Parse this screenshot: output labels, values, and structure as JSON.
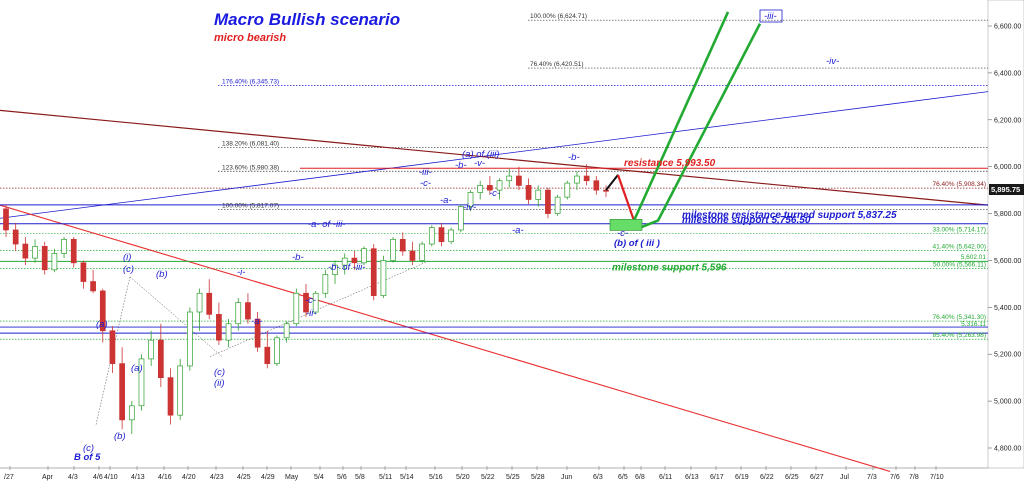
{
  "colors": {
    "blue": "#1c1cd0",
    "red": "#e02020",
    "darkred": "#8b1a1a",
    "green": "#22aa33",
    "candle_up": "#2fa02f",
    "candle_dn": "#cc3333",
    "grid": "#bbbbbb"
  },
  "chart_data": {
    "type": "candlestick",
    "title": "Macro Bullish scenario",
    "subtitle": "micro bearish",
    "ylim": [
      4700,
      6700
    ],
    "price_axis": [
      "4,800.00",
      "5,000.00",
      "5,200.00",
      "5,400.00",
      "5,600.00",
      "5,800.00",
      "6,000.00",
      "6,200.00",
      "6,400.00",
      "6,600.00"
    ],
    "x_ticks": [
      "/27",
      "Apr",
      "4/3",
      "4/6",
      "4/10",
      "4/13",
      "4/16",
      "4/20",
      "4/23",
      "4/25",
      "4/29",
      "May",
      "5/4",
      "5/6",
      "5/8",
      "5/11",
      "5/14",
      "5/16",
      "5/20",
      "5/22",
      "5/25",
      "5/28",
      "Jun",
      "6/3",
      "6/5",
      "6/8",
      "6/11",
      "6/13",
      "6/17",
      "6/19",
      "6/22",
      "6/25",
      "6/27",
      "Jul",
      "7/3",
      "7/6",
      "7/8",
      "7/10"
    ],
    "last_price": "5,895.75",
    "fib_levels": [
      {
        "label": "100.00% (6,624.71)",
        "value": 6624.71,
        "color": "#333333",
        "side": "upper"
      },
      {
        "label": "76.40% (6,420.51)",
        "value": 6420.51,
        "color": "#333333",
        "side": "upper"
      },
      {
        "label": "176.40% (6,345.73)",
        "value": 6345.73,
        "color": "#1c1cd0",
        "side": "left"
      },
      {
        "label": "138.20% (6,081.40)",
        "value": 6081.4,
        "color": "#333333",
        "side": "left"
      },
      {
        "label": "123.60% (5,980.38)",
        "value": 5980.38,
        "color": "#333333",
        "side": "left"
      },
      {
        "label": "100.00% (5,817.07)",
        "value": 5817.07,
        "color": "#333333",
        "side": "left"
      },
      {
        "label": "76.40% (5,908.34)",
        "value": 5908.34,
        "color": "#8b1a1a",
        "side": "right"
      },
      {
        "label": "33.00% (5,714.17)",
        "value": 5714.17,
        "color": "#22aa33",
        "side": "right"
      },
      {
        "label": "41.40% (5,642.00)",
        "value": 5642.0,
        "color": "#22aa33",
        "side": "right"
      },
      {
        "label": "50.00% (5,566.11)",
        "value": 5566.11,
        "color": "#22aa33",
        "side": "right"
      },
      {
        "label": "76.40% (5,341.30)",
        "value": 5341.3,
        "color": "#22aa33",
        "side": "right"
      },
      {
        "label": "85.40% (5,263.98)",
        "value": 5263.98,
        "color": "#22aa33",
        "side": "right"
      }
    ],
    "small_prices": [
      {
        "label": "5,602.01",
        "value": 5602.01
      },
      {
        "label": "5,316.11",
        "value": 5316.11
      }
    ],
    "horizontal_levels": [
      {
        "label": "resistance 5,993.50",
        "value": 5993.5,
        "color": "#e02020"
      },
      {
        "label": "milestone resistance turned support 5,837.25",
        "value": 5837.25,
        "color": "#1c1cd0"
      },
      {
        "label": "milestone support 5,756.50",
        "value": 5756.5,
        "color": "#1c1cd0"
      },
      {
        "label": "milestone support 5,596",
        "value": 5596,
        "color": "#22aa33"
      }
    ],
    "wave_labels": [
      {
        "text": "-iii-",
        "color": "#1c1cd0",
        "boxed": true
      },
      {
        "text": "-iv-",
        "color": "#1c1cd0"
      },
      {
        "text": "(a) of (iii)",
        "color": "#1c1cd0"
      },
      {
        "text": "-v-",
        "color": "#1c1cd0"
      },
      {
        "text": "-b-",
        "color": "#1c1cd0"
      },
      {
        "text": "-iii-",
        "color": "#1c1cd0"
      },
      {
        "text": "-b-",
        "color": "#1c1cd0"
      },
      {
        "text": "-c-",
        "color": "#1c1cd0"
      },
      {
        "text": "-a-",
        "color": "#1c1cd0"
      },
      {
        "text": "-iv-",
        "color": "#1c1cd0"
      },
      {
        "text": "-c-",
        "color": "#1c1cd0"
      },
      {
        "text": "-a-",
        "color": "#1c1cd0"
      },
      {
        "text": "-a- of -iii-",
        "color": "#1c1cd0"
      },
      {
        "text": "-b- of -iii-",
        "color": "#1c1cd0"
      },
      {
        "text": "-b-",
        "color": "#1c1cd0"
      },
      {
        "text": "-i-",
        "color": "#1c1cd0"
      },
      {
        "text": "-c-",
        "color": "#1c1cd0"
      },
      {
        "text": "-ii-",
        "color": "#1c1cd0"
      },
      {
        "text": "-a-",
        "color": "#1c1cd0"
      },
      {
        "text": "(i)",
        "color": "#1c1cd0"
      },
      {
        "text": "(c)",
        "color": "#1c1cd0"
      },
      {
        "text": "(b)",
        "color": "#1c1cd0"
      },
      {
        "text": "(a)",
        "color": "#1c1cd0"
      },
      {
        "text": "(a)",
        "color": "#1c1cd0"
      },
      {
        "text": "(c)",
        "color": "#1c1cd0"
      },
      {
        "text": "(ii)",
        "color": "#1c1cd0"
      },
      {
        "text": "(b)",
        "color": "#1c1cd0"
      },
      {
        "text": "(c)",
        "color": "#e02020"
      },
      {
        "text": "B of 5",
        "color": "#1c1cd0"
      },
      {
        "text": "-c-",
        "color": "#111111",
        "boxed_green": true
      },
      {
        "text": "(b) of ( iii )",
        "color": "#111111"
      }
    ],
    "candles": [
      [
        5820,
        5840,
        5700,
        5730
      ],
      [
        5730,
        5760,
        5640,
        5670
      ],
      [
        5670,
        5700,
        5580,
        5610
      ],
      [
        5610,
        5690,
        5590,
        5660
      ],
      [
        5660,
        5680,
        5540,
        5560
      ],
      [
        5560,
        5650,
        5550,
        5630
      ],
      [
        5630,
        5700,
        5610,
        5690
      ],
      [
        5690,
        5700,
        5570,
        5590
      ],
      [
        5590,
        5600,
        5480,
        5510
      ],
      [
        5510,
        5560,
        5460,
        5470
      ],
      [
        5470,
        5480,
        5250,
        5300
      ],
      [
        5300,
        5320,
        5120,
        5160
      ],
      [
        5160,
        5230,
        4880,
        4920
      ],
      [
        4920,
        5000,
        4860,
        4980
      ],
      [
        4980,
        5200,
        4960,
        5180
      ],
      [
        5180,
        5300,
        5150,
        5260
      ],
      [
        5260,
        5330,
        5060,
        5100
      ],
      [
        5100,
        5140,
        4900,
        4940
      ],
      [
        4940,
        5180,
        4920,
        5150
      ],
      [
        5150,
        5400,
        5130,
        5380
      ],
      [
        5380,
        5480,
        5300,
        5460
      ],
      [
        5460,
        5520,
        5350,
        5370
      ],
      [
        5370,
        5420,
        5240,
        5260
      ],
      [
        5260,
        5350,
        5230,
        5330
      ],
      [
        5330,
        5440,
        5300,
        5420
      ],
      [
        5420,
        5460,
        5330,
        5350
      ],
      [
        5350,
        5380,
        5210,
        5230
      ],
      [
        5230,
        5300,
        5140,
        5160
      ],
      [
        5160,
        5280,
        5150,
        5270
      ],
      [
        5270,
        5340,
        5250,
        5330
      ],
      [
        5330,
        5480,
        5320,
        5460
      ],
      [
        5460,
        5500,
        5360,
        5380
      ],
      [
        5380,
        5470,
        5370,
        5460
      ],
      [
        5460,
        5560,
        5440,
        5540
      ],
      [
        5540,
        5600,
        5500,
        5580
      ],
      [
        5580,
        5630,
        5540,
        5610
      ],
      [
        5610,
        5640,
        5560,
        5590
      ],
      [
        5590,
        5660,
        5580,
        5650
      ],
      [
        5650,
        5670,
        5430,
        5450
      ],
      [
        5450,
        5620,
        5440,
        5600
      ],
      [
        5600,
        5700,
        5590,
        5690
      ],
      [
        5690,
        5720,
        5620,
        5640
      ],
      [
        5640,
        5680,
        5580,
        5600
      ],
      [
        5600,
        5680,
        5590,
        5670
      ],
      [
        5670,
        5750,
        5660,
        5740
      ],
      [
        5740,
        5760,
        5660,
        5680
      ],
      [
        5680,
        5740,
        5670,
        5730
      ],
      [
        5730,
        5840,
        5720,
        5830
      ],
      [
        5830,
        5900,
        5810,
        5890
      ],
      [
        5890,
        5940,
        5860,
        5920
      ],
      [
        5920,
        5960,
        5880,
        5900
      ],
      [
        5900,
        5950,
        5860,
        5940
      ],
      [
        5940,
        5990,
        5910,
        5960
      ],
      [
        5960,
        6000,
        5900,
        5920
      ],
      [
        5920,
        5950,
        5840,
        5860
      ],
      [
        5860,
        5920,
        5830,
        5900
      ],
      [
        5900,
        5910,
        5780,
        5800
      ],
      [
        5800,
        5880,
        5790,
        5870
      ],
      [
        5870,
        5940,
        5860,
        5930
      ],
      [
        5930,
        5980,
        5900,
        5960
      ],
      [
        5960,
        6010,
        5920,
        5940
      ],
      [
        5940,
        5960,
        5880,
        5900
      ],
      [
        5900,
        5920,
        5870,
        5895
      ]
    ]
  }
}
